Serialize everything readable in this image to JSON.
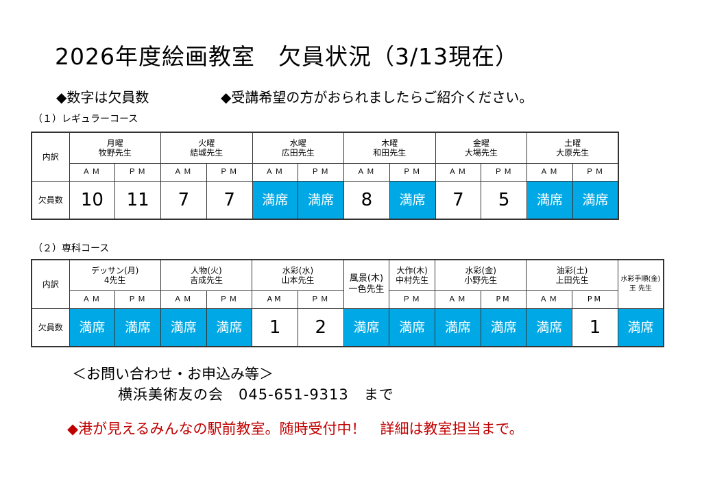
{
  "title": "2026年度絵画教室　欠員状況（3/13現在）",
  "notes": [
    "◆数字は欠員数",
    "◆受講希望の方がおられましたらご紹介ください。"
  ],
  "colors": {
    "full": "#00a9e6",
    "promo": "#c00000"
  },
  "regular": {
    "heading": "（１）レギュラーコース",
    "row_label_header": "内訳",
    "row_label_values": "欠員数",
    "classes": [
      {
        "day": "月曜",
        "teacher": "牧野先生",
        "slots": [
          {
            "time": "ＡＭ",
            "value": "10"
          },
          {
            "time": "ＰＭ",
            "value": "11"
          }
        ]
      },
      {
        "day": "火曜",
        "teacher": "結城先生",
        "slots": [
          {
            "time": "ＡＭ",
            "value": "7"
          },
          {
            "time": "ＰＭ",
            "value": "7"
          }
        ]
      },
      {
        "day": "水曜",
        "teacher": "広田先生",
        "slots": [
          {
            "time": "ＡＭ",
            "value": "満席"
          },
          {
            "time": "ＰＭ",
            "value": "満席"
          }
        ]
      },
      {
        "day": "木曜",
        "teacher": "和田先生",
        "slots": [
          {
            "time": "ＡＭ",
            "value": "8"
          },
          {
            "time": "ＰＭ",
            "value": "満席"
          }
        ]
      },
      {
        "day": "金曜",
        "teacher": "大場先生",
        "slots": [
          {
            "time": "ＡＭ",
            "value": "7"
          },
          {
            "time": "ＰＭ",
            "value": "5"
          }
        ]
      },
      {
        "day": "土曜",
        "teacher": "大原先生",
        "slots": [
          {
            "time": "ＡＭ",
            "value": "満席"
          },
          {
            "time": "ＰＭ",
            "value": "満席"
          }
        ]
      }
    ]
  },
  "special": {
    "heading": "（２）専科コース",
    "row_label_header": "内訳",
    "row_label_values": "欠員数",
    "classes": [
      {
        "name": "デッサン(月)",
        "teacher": "4先生",
        "slots": [
          {
            "time": "ＡＭ",
            "value": "満席"
          },
          {
            "time": "ＰＭ",
            "value": "満席"
          }
        ]
      },
      {
        "name": "人物(火)",
        "teacher": "吉成先生",
        "slots": [
          {
            "time": "ＡＭ",
            "value": "満席"
          },
          {
            "time": "ＰＭ",
            "value": "満席"
          }
        ]
      },
      {
        "name": "水彩(水)",
        "teacher": "山本先生",
        "slots": [
          {
            "time": "AM",
            "value": "1"
          },
          {
            "time": "ＰＭ",
            "value": "2"
          }
        ]
      },
      {
        "name": "風景(木)",
        "teacher": "一色先生",
        "slots": [
          {
            "time": "",
            "value": "満席"
          }
        ]
      },
      {
        "name": "大作(木)",
        "teacher": "中村先生",
        "slots": [
          {
            "time": "ＰＭ",
            "value": "満席"
          }
        ]
      },
      {
        "name": "水彩(金)",
        "teacher": "小野先生",
        "slots": [
          {
            "time": "ＡＭ",
            "value": "満席"
          },
          {
            "time": "PM",
            "value": "満席"
          }
        ]
      },
      {
        "name": "油彩(土)",
        "teacher": "上田先生",
        "slots": [
          {
            "time": "ＡＭ",
            "value": "満席"
          },
          {
            "time": "PM",
            "value": "1"
          }
        ]
      },
      {
        "name": "水彩手順(金)",
        "teacher": "王 先生",
        "slots": [
          {
            "time": "",
            "value": "満席"
          }
        ]
      }
    ]
  },
  "contact": {
    "heading": "＜お問い合わせ・お申込み等＞",
    "line": "横浜美術友の会　045-651-9313　まで"
  },
  "promo": "◆港が見えるみんなの駅前教室。随時受付中！　詳細は教室担当まで。"
}
